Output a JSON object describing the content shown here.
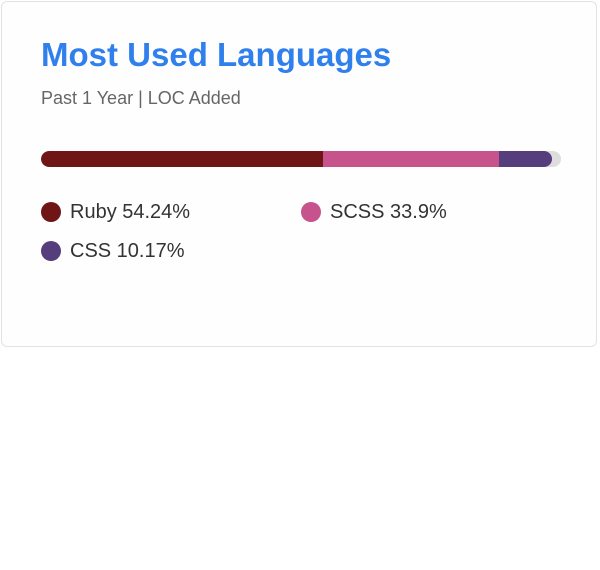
{
  "card": {
    "title": "Most Used Languages",
    "subtitle": "Past 1 Year | LOC Added"
  },
  "chart_data": {
    "type": "bar",
    "orientation": "stacked-horizontal",
    "title": "Most Used Languages",
    "subtitle": "Past 1 Year | LOC Added",
    "categories": [
      "Ruby",
      "SCSS",
      "CSS"
    ],
    "values": [
      54.24,
      33.9,
      10.17
    ],
    "unit": "%",
    "labels": [
      "Ruby 54.24%",
      "SCSS 33.9%",
      "CSS 10.17%"
    ],
    "colors": [
      "#701516",
      "#c6538c",
      "#563d7c"
    ],
    "track_color": "#dddddd",
    "legend_position": "bottom",
    "grid": false,
    "ylim": [
      0,
      100
    ]
  }
}
